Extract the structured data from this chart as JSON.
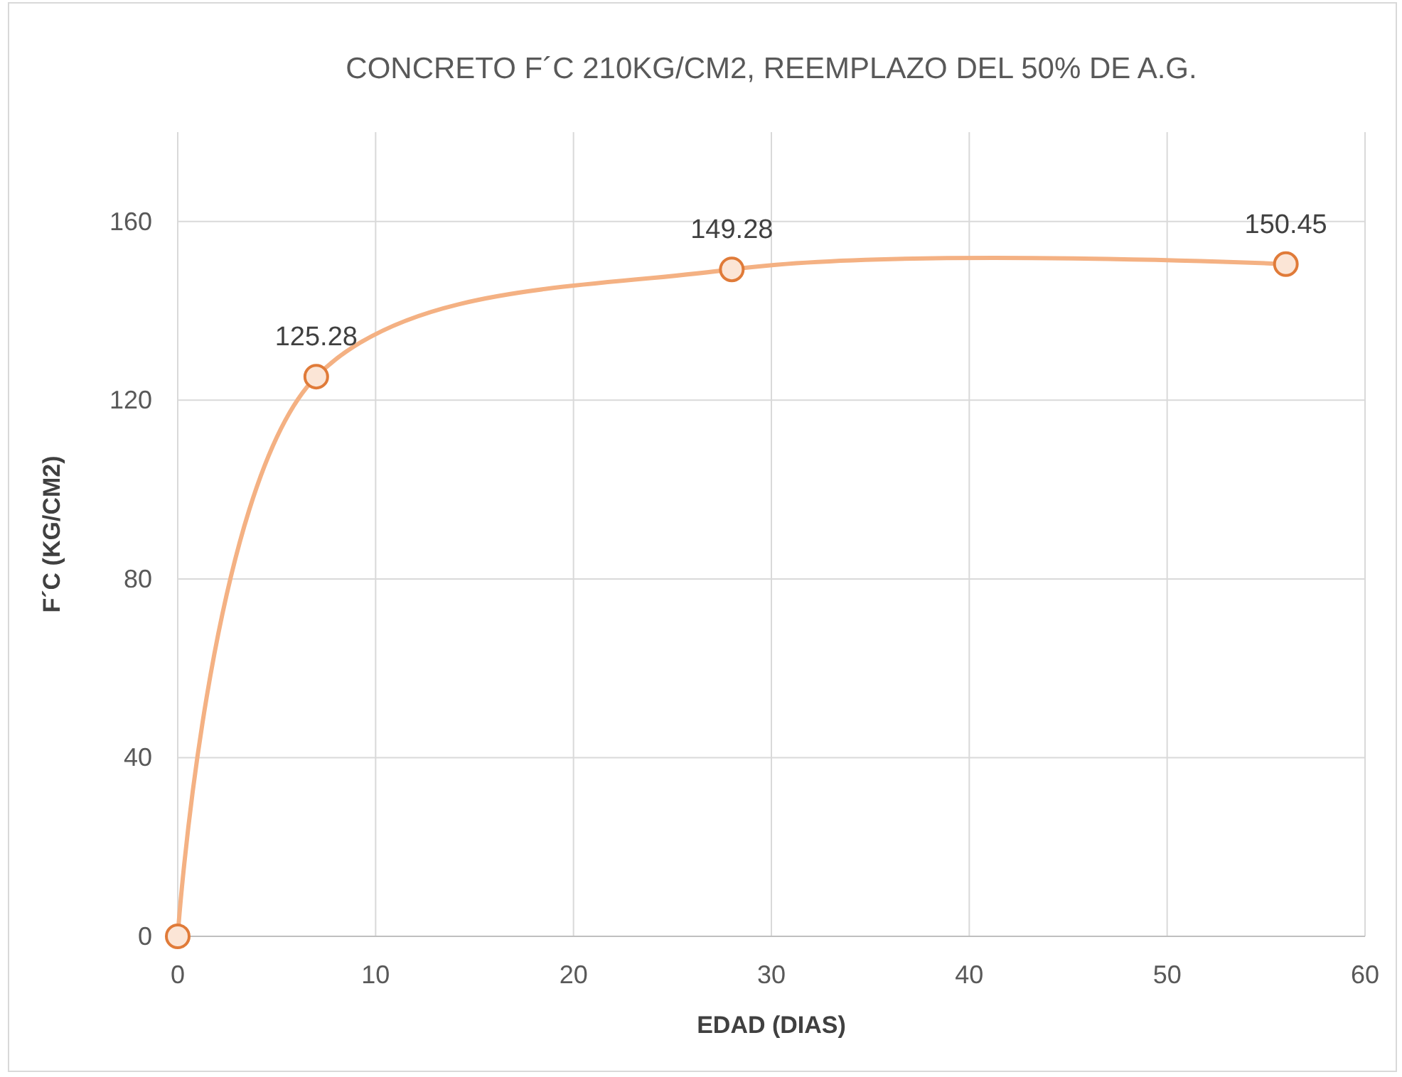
{
  "chart_data": {
    "type": "line",
    "title": "CONCRETO F´C 210KG/CM2, REEMPLAZO DEL 50% DE A.G.",
    "xlabel": "EDAD (DIAS)",
    "ylabel": "F´C (KG/CM2)",
    "x": [
      0,
      7,
      28,
      56
    ],
    "series": [
      {
        "color": "#f4b183",
        "values": [
          0,
          125.28,
          149.28,
          150.45
        ],
        "value_labels": [
          null,
          "125.28",
          "149.28",
          "150.45"
        ]
      }
    ],
    "xlim": [
      0,
      60
    ],
    "xticks": [
      0,
      10,
      20,
      30,
      40,
      50,
      60
    ],
    "ylim": [
      0,
      180
    ],
    "yticks": [
      0,
      40,
      80,
      120,
      160
    ],
    "grid": true,
    "marker": "circle",
    "line_style": "solid"
  }
}
